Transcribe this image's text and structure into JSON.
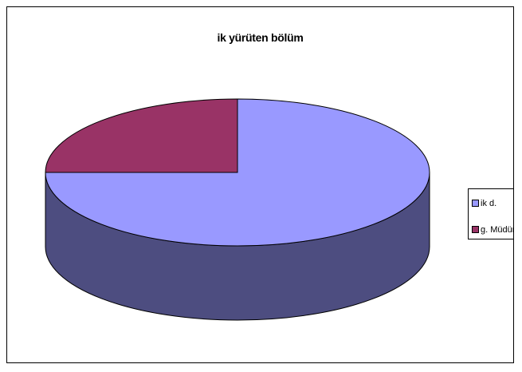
{
  "chart_data": {
    "type": "pie",
    "title": "ik yürüten bölüm",
    "categories": [
      "ik d.",
      "g. Müdür"
    ],
    "values": [
      75,
      25
    ],
    "colors": [
      "#9999ff",
      "#993366"
    ],
    "side_colors": [
      "#4d4d80",
      "#4d1a33"
    ],
    "style": "3d",
    "legend_position": "right"
  }
}
